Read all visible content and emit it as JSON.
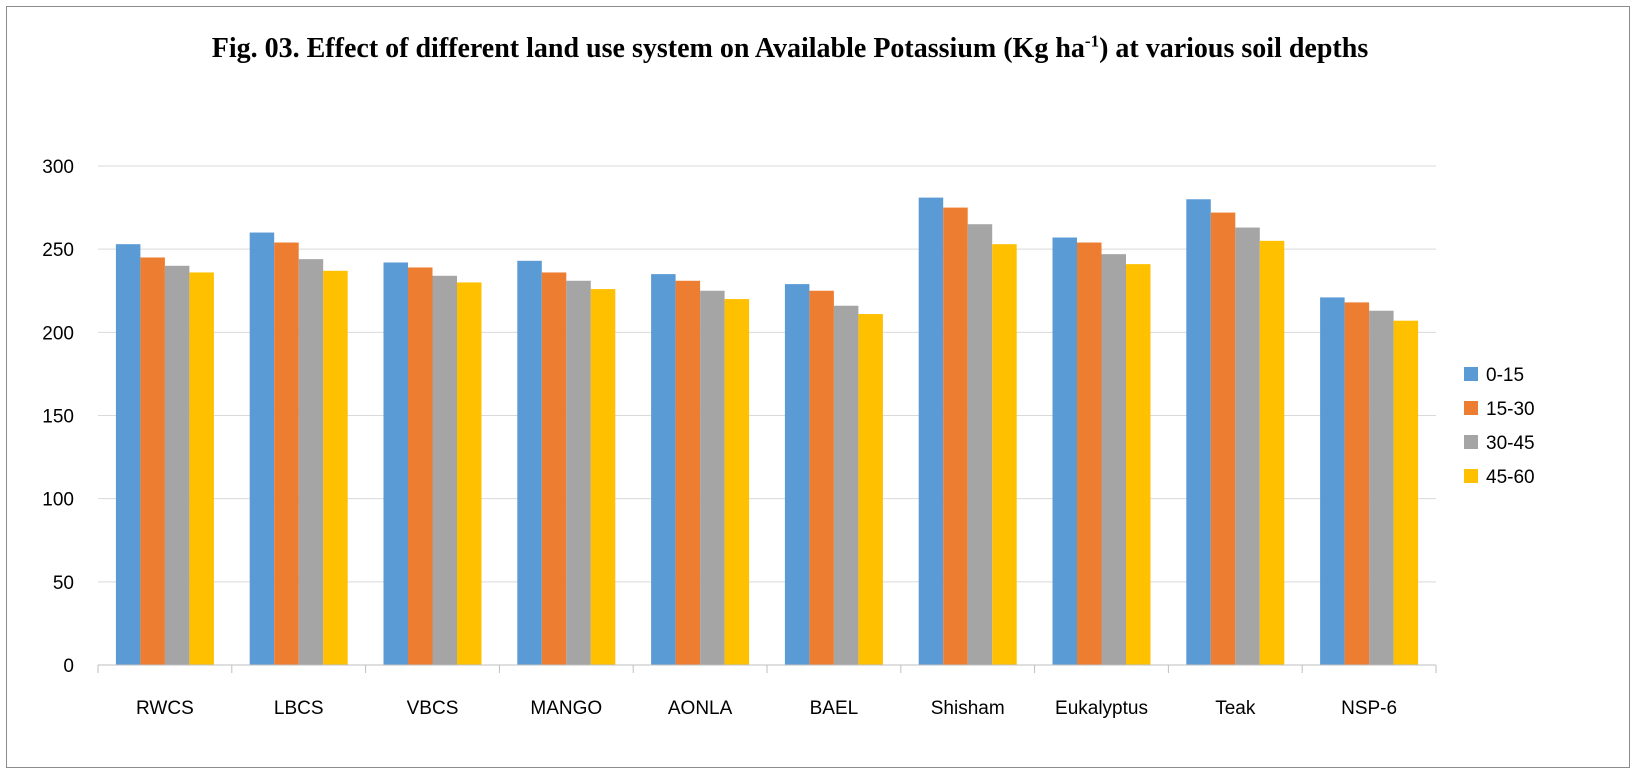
{
  "chart_data": {
    "type": "bar",
    "title_main": "Fig. 03. Effect of different land use system on Available Potassium (Kg ha",
    "title_sup": "-1",
    "title_end": ") at various soil depths",
    "categories": [
      "RWCS",
      "LBCS",
      "VBCS",
      "MANGO",
      "AONLA",
      "BAEL",
      "Shisham",
      "Eukalyptus",
      "Teak",
      "NSP-6"
    ],
    "series": [
      {
        "name": "0-15",
        "color": "#5b9bd5",
        "values": [
          253,
          260,
          242,
          243,
          235,
          229,
          281,
          257,
          280,
          221
        ]
      },
      {
        "name": "15-30",
        "color": "#ed7d31",
        "values": [
          245,
          254,
          239,
          236,
          231,
          225,
          275,
          254,
          272,
          218
        ]
      },
      {
        "name": "30-45",
        "color": "#a5a5a5",
        "values": [
          240,
          244,
          234,
          231,
          225,
          216,
          265,
          247,
          263,
          213
        ]
      },
      {
        "name": "45-60",
        "color": "#ffc000",
        "values": [
          236,
          237,
          230,
          226,
          220,
          211,
          253,
          241,
          255,
          207
        ]
      }
    ],
    "y_ticks": [
      "0",
      "50",
      "100",
      "150",
      "200",
      "250",
      "300"
    ],
    "ylim": [
      0,
      300
    ],
    "grid": true,
    "legend_position": "right"
  }
}
